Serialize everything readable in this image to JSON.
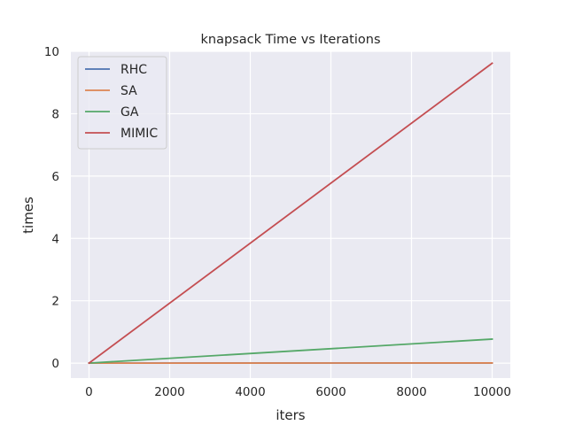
{
  "chart_data": {
    "type": "line",
    "title": "knapsack Time vs Iterations",
    "xlabel": "iters",
    "ylabel": "times",
    "xlim": [
      -450,
      10450
    ],
    "ylim": [
      -0.48,
      10.0
    ],
    "xticks": [
      0,
      2000,
      4000,
      6000,
      8000,
      10000
    ],
    "yticks": [
      0,
      2,
      4,
      6,
      8,
      10
    ],
    "grid": true,
    "legend_position": "top-left",
    "x": [
      0,
      10000
    ],
    "series": [
      {
        "name": "RHC",
        "color": "#4c72b0",
        "values": [
          0.0,
          0.005
        ]
      },
      {
        "name": "SA",
        "color": "#dd8452",
        "values": [
          0.0,
          0.005
        ]
      },
      {
        "name": "GA",
        "color": "#55a868",
        "values": [
          0.0,
          0.77
        ]
      },
      {
        "name": "MIMIC",
        "color": "#c44e52",
        "values": [
          0.0,
          9.62
        ]
      }
    ]
  }
}
